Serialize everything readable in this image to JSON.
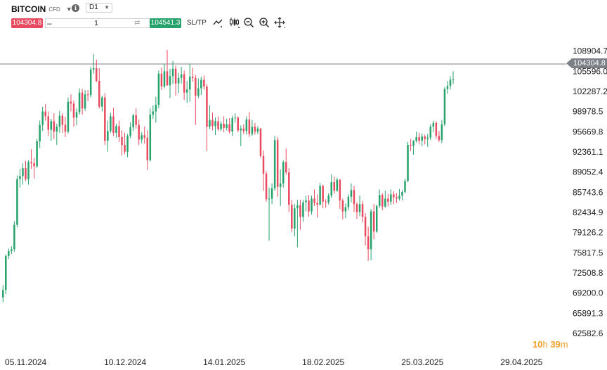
{
  "header": {
    "symbol": "BITCOIN",
    "symbol_type": "CFD",
    "timeframe": "D1"
  },
  "order": {
    "sell_price": "104304.8",
    "quantity": "1",
    "buy_price": "104541.3",
    "sltp_label": "SL/TP"
  },
  "toolbar_icons": [
    "line-chart-icon",
    "candlestick-icon",
    "zoom-out-icon",
    "zoom-in-icon",
    "crosshair-icon"
  ],
  "current_price_label": "104304.8",
  "countdown": {
    "hours": "10",
    "h_unit": "h",
    "minutes": "39",
    "m_unit": "m"
  },
  "colors": {
    "up": "#26a26b",
    "down": "#e84a5f",
    "price_line": "#7b8087",
    "countdown": "#f0a028"
  },
  "chart_data": {
    "type": "candlestick",
    "y_ticks": [
      "108904.7",
      "105596.0",
      "102287.2",
      "98978.5",
      "95669.8",
      "92361.1",
      "89052.4",
      "85743.6",
      "82434.9",
      "79126.2",
      "75817.5",
      "72508.8",
      "69200.0",
      "65891.3",
      "62582.6"
    ],
    "ylim": [
      62582.6,
      112213.4
    ],
    "x_ticks": [
      "05.11.2024",
      "10.12.2024",
      "14.01.2025",
      "18.02.2025",
      "25.03.2025",
      "29.04.2025"
    ],
    "x_tick_index": [
      1,
      36,
      71,
      106,
      141,
      176
    ],
    "current_price": 104304.8,
    "candles": [
      [
        68500,
        70500,
        67700,
        69700
      ],
      [
        69700,
        75500,
        69000,
        75300
      ],
      [
        75300,
        76500,
        74800,
        76100
      ],
      [
        76100,
        76900,
        75600,
        76400
      ],
      [
        76400,
        81000,
        76000,
        80400
      ],
      [
        80400,
        88500,
        80000,
        87900
      ],
      [
        87900,
        89600,
        86500,
        88400
      ],
      [
        88400,
        90500,
        87000,
        89700
      ],
      [
        89700,
        90900,
        87600,
        87900
      ],
      [
        87900,
        91000,
        87000,
        90700
      ],
      [
        90700,
        92800,
        89600,
        90500
      ],
      [
        90500,
        91400,
        88000,
        90000
      ],
      [
        90000,
        94500,
        89700,
        94100
      ],
      [
        94100,
        97500,
        93000,
        96800
      ],
      [
        96800,
        99800,
        95800,
        99000
      ],
      [
        99000,
        100200,
        97500,
        98200
      ],
      [
        98200,
        99000,
        95000,
        96000
      ],
      [
        96000,
        97800,
        94200,
        97400
      ],
      [
        97400,
        98700,
        94500,
        95700
      ],
      [
        95700,
        97000,
        93500,
        96500
      ],
      [
        96500,
        99100,
        95500,
        98300
      ],
      [
        98300,
        98700,
        95500,
        96800
      ],
      [
        96800,
        98100,
        94800,
        95700
      ],
      [
        95700,
        101300,
        95400,
        100600
      ],
      [
        100600,
        101800,
        99000,
        100300
      ],
      [
        100300,
        100800,
        96500,
        98000
      ],
      [
        98000,
        99500,
        96700,
        98900
      ],
      [
        98900,
        102800,
        98500,
        102100
      ],
      [
        102100,
        102700,
        98500,
        99500
      ],
      [
        99500,
        102500,
        99100,
        101800
      ],
      [
        101800,
        102500,
        100700,
        101700
      ],
      [
        101700,
        106300,
        101300,
        105900
      ],
      [
        105900,
        108400,
        105200,
        106100
      ],
      [
        106100,
        107500,
        103800,
        104000
      ],
      [
        104000,
        106100,
        99500,
        99800
      ],
      [
        99800,
        101600,
        99000,
        101300
      ],
      [
        101300,
        102000,
        93500,
        94200
      ],
      [
        94200,
        97500,
        92400,
        95800
      ],
      [
        95800,
        98800,
        95500,
        98200
      ],
      [
        98200,
        99600,
        95000,
        95500
      ],
      [
        95500,
        97000,
        94700,
        96600
      ],
      [
        96600,
        97500,
        94000,
        94800
      ],
      [
        94800,
        95900,
        91800,
        93500
      ],
      [
        93500,
        95500,
        92000,
        92400
      ],
      [
        92400,
        95300,
        91500,
        95000
      ],
      [
        95000,
        97200,
        94600,
        96400
      ],
      [
        96400,
        98600,
        95800,
        98400
      ],
      [
        98400,
        99500,
        96200,
        96800
      ],
      [
        96800,
        97700,
        93500,
        94400
      ],
      [
        94400,
        95600,
        93800,
        95100
      ],
      [
        95100,
        96500,
        93700,
        94700
      ],
      [
        94700,
        95900,
        89400,
        91000
      ],
      [
        91000,
        99500,
        90800,
        98500
      ],
      [
        98500,
        100000,
        97800,
        99000
      ],
      [
        99000,
        101400,
        97200,
        100100
      ],
      [
        100100,
        105700,
        99500,
        105200
      ],
      [
        105200,
        106200,
        102500,
        103100
      ],
      [
        103100,
        106800,
        102800,
        105600
      ],
      [
        105600,
        109100,
        103200,
        103300
      ],
      [
        103300,
        106000,
        101200,
        104800
      ],
      [
        104800,
        107300,
        103500,
        106000
      ],
      [
        106000,
        106500,
        101600,
        103600
      ],
      [
        103600,
        105300,
        102000,
        104500
      ],
      [
        104500,
        106300,
        103600,
        105100
      ],
      [
        105100,
        105700,
        100900,
        102100
      ],
      [
        102100,
        104000,
        100400,
        102600
      ],
      [
        102600,
        106800,
        100600,
        104700
      ],
      [
        104700,
        106200,
        103900,
        104500
      ],
      [
        104500,
        105000,
        96800,
        101600
      ],
      [
        101600,
        104400,
        101200,
        102800
      ],
      [
        102800,
        104700,
        101700,
        104200
      ],
      [
        104200,
        104900,
        102600,
        103100
      ],
      [
        103100,
        103500,
        92500,
        96500
      ],
      [
        96500,
        100000,
        96100,
        97600
      ],
      [
        97600,
        98800,
        95900,
        96600
      ],
      [
        96600,
        98000,
        95100,
        97400
      ],
      [
        97400,
        98200,
        95800,
        96100
      ],
      [
        96100,
        97400,
        95800,
        97000
      ],
      [
        97000,
        98200,
        95600,
        96300
      ],
      [
        96300,
        97800,
        95900,
        96900
      ],
      [
        96900,
        97900,
        95400,
        95700
      ],
      [
        95700,
        98300,
        95000,
        97900
      ],
      [
        97900,
        98700,
        97200,
        98000
      ],
      [
        98000,
        98200,
        95600,
        95900
      ],
      [
        95900,
        96700,
        93300,
        96200
      ],
      [
        96200,
        96900,
        95300,
        95800
      ],
      [
        95800,
        98200,
        95200,
        97700
      ],
      [
        97700,
        98900,
        94800,
        95300
      ],
      [
        95300,
        97600,
        95000,
        96500
      ],
      [
        96500,
        97100,
        95200,
        95700
      ],
      [
        95700,
        96600,
        95300,
        96200
      ],
      [
        96200,
        96300,
        91400,
        91700
      ],
      [
        91700,
        92600,
        86000,
        88800
      ],
      [
        88800,
        89200,
        84200,
        84600
      ],
      [
        84600,
        86500,
        77800,
        84700
      ],
      [
        84700,
        87200,
        83800,
        86400
      ],
      [
        86400,
        95000,
        86000,
        94300
      ],
      [
        94300,
        94800,
        85000,
        86600
      ],
      [
        86600,
        89500,
        83500,
        87200
      ],
      [
        87200,
        91000,
        86500,
        90700
      ],
      [
        90700,
        92900,
        88600,
        89000
      ],
      [
        89000,
        89700,
        82500,
        83700
      ],
      [
        83700,
        84500,
        79200,
        79800
      ],
      [
        79800,
        83800,
        78500,
        83100
      ],
      [
        83100,
        84500,
        76700,
        83600
      ],
      [
        83600,
        84500,
        79600,
        81700
      ],
      [
        81700,
        84500,
        80900,
        84100
      ],
      [
        84100,
        85200,
        82600,
        84400
      ],
      [
        84400,
        85300,
        81700,
        82600
      ],
      [
        82600,
        85200,
        82100,
        84700
      ],
      [
        84700,
        86200,
        83500,
        84000
      ],
      [
        84000,
        85400,
        81600,
        83700
      ],
      [
        83700,
        87300,
        83600,
        86800
      ],
      [
        86800,
        87000,
        83100,
        84200
      ],
      [
        84200,
        84600,
        83200,
        84100
      ],
      [
        84100,
        85600,
        83700,
        85200
      ],
      [
        85200,
        88700,
        84800,
        87400
      ],
      [
        87400,
        88300,
        85500,
        86000
      ],
      [
        86000,
        88100,
        85800,
        87800
      ],
      [
        87800,
        87900,
        83000,
        84400
      ],
      [
        84400,
        84700,
        81300,
        82600
      ],
      [
        82600,
        83900,
        81500,
        83300
      ],
      [
        83300,
        85400,
        82800,
        85000
      ],
      [
        85000,
        87200,
        84100,
        86100
      ],
      [
        86100,
        86800,
        82500,
        83800
      ],
      [
        83800,
        84100,
        81400,
        82500
      ],
      [
        82500,
        85200,
        81800,
        83800
      ],
      [
        83800,
        84300,
        80800,
        81700
      ],
      [
        81700,
        82300,
        77000,
        78500
      ],
      [
        78500,
        80100,
        74500,
        76400
      ],
      [
        76400,
        83000,
        74600,
        82600
      ],
      [
        82600,
        83800,
        78000,
        79300
      ],
      [
        79300,
        83700,
        79100,
        83500
      ],
      [
        83500,
        86200,
        83200,
        85300
      ],
      [
        85300,
        85600,
        82800,
        83400
      ],
      [
        83400,
        86000,
        83200,
        84700
      ],
      [
        84700,
        85500,
        83400,
        84200
      ],
      [
        84200,
        86200,
        83700,
        85400
      ],
      [
        85400,
        85900,
        83800,
        84900
      ],
      [
        84900,
        85600,
        84000,
        84700
      ],
      [
        84700,
        86300,
        84400,
        85200
      ],
      [
        85200,
        86100,
        84400,
        85800
      ],
      [
        85800,
        88000,
        85600,
        87600
      ],
      [
        87600,
        94000,
        87400,
        93500
      ],
      [
        93500,
        94500,
        92500,
        93400
      ],
      [
        93400,
        94300,
        91900,
        94200
      ],
      [
        94200,
        95700,
        93900,
        94800
      ],
      [
        94800,
        95500,
        93600,
        94200
      ],
      [
        94200,
        95400,
        93300,
        94900
      ],
      [
        94900,
        95200,
        93600,
        94500
      ],
      [
        94500,
        95300,
        93200,
        94700
      ],
      [
        94700,
        96900,
        94300,
        96500
      ],
      [
        96500,
        97500,
        95600,
        97100
      ],
      [
        97100,
        97400,
        94500,
        95000
      ],
      [
        95000,
        95800,
        94000,
        94300
      ],
      [
        94300,
        97600,
        93800,
        96900
      ],
      [
        96900,
        103000,
        96600,
        102700
      ],
      [
        102700,
        104000,
        101900,
        103200
      ],
      [
        103200,
        104800,
        102600,
        104200
      ],
      [
        104200,
        105600,
        103500,
        104300
      ]
    ]
  }
}
